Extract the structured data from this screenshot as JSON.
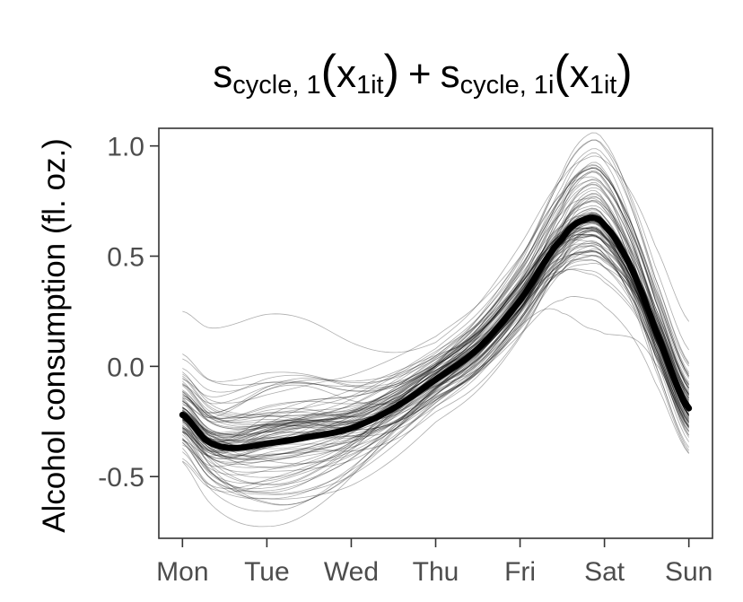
{
  "chart_data": {
    "type": "line",
    "title": {
      "s1": "s",
      "s1_sub": "cycle, 1",
      "paren1_open": "(",
      "x1": "x",
      "x1_sub": "1it",
      "paren1_close": ")",
      "plus": "+",
      "s2": "s",
      "s2_sub": "cycle, 1i",
      "paren2_open": "(",
      "x2": "x",
      "x2_sub": "1it",
      "paren2_close": ")"
    },
    "xlabel": "",
    "ylabel": "Alcohol consumption (fl. oz.)",
    "categories": [
      "Mon",
      "Tue",
      "Wed",
      "Thu",
      "Fri",
      "Sat",
      "Sun"
    ],
    "x_range": [
      -0.28,
      6.28
    ],
    "ylim": [
      -0.78,
      1.08
    ],
    "y_ticks": [
      -0.5,
      0.0,
      0.5,
      1.0
    ],
    "y_tick_labels": [
      "-0.5",
      "0.0",
      "0.5",
      "1.0"
    ],
    "grid": false,
    "mean_curve": {
      "x": [
        0,
        0.3,
        0.6,
        1.0,
        1.5,
        2.0,
        2.5,
        3.0,
        3.5,
        4.0,
        4.5,
        4.8,
        5.0,
        5.3,
        5.6,
        6.0
      ],
      "y": [
        -0.22,
        -0.34,
        -0.37,
        -0.35,
        -0.32,
        -0.28,
        -0.19,
        -0.06,
        0.08,
        0.3,
        0.58,
        0.67,
        0.64,
        0.46,
        0.17,
        -0.19
      ]
    },
    "individual_curves_count": 100,
    "colors": {
      "mean": "#000000",
      "individual": "#000000",
      "axis": "#333333",
      "tick_label": "#4d4d4d"
    }
  }
}
